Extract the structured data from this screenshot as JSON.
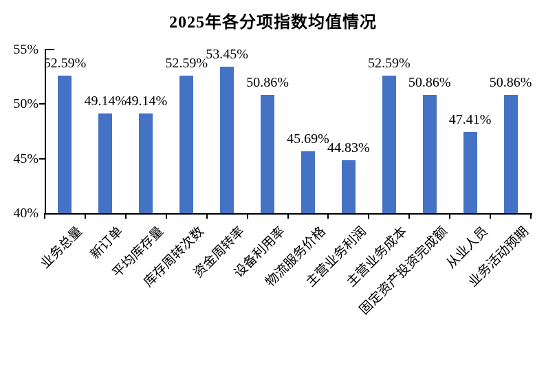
{
  "page": {
    "background": "#FFFFFF"
  },
  "chart_data": {
    "type": "bar",
    "title": "2025年各分项指数均值情况",
    "categories": [
      "业务总量",
      "新订单",
      "平均库存量",
      "库存周转次数",
      "资金周转率",
      "设备利用率",
      "物流服务价格",
      "主营业务利润",
      "主营业务成本",
      "固定资产投资完成额",
      "从业人员",
      "业务活动预期"
    ],
    "values": [
      52.59,
      49.14,
      49.14,
      52.59,
      53.45,
      50.86,
      45.69,
      44.83,
      52.59,
      50.86,
      47.41,
      50.86
    ],
    "data_labels": [
      "52.59%",
      "49.14%",
      "49.14%",
      "52.59%",
      "53.45%",
      "50.86%",
      "45.69%",
      "44.83%",
      "52.59%",
      "50.86%",
      "47.41%",
      "50.86%"
    ],
    "xlabel": "",
    "ylabel": "",
    "ylim": [
      40,
      55
    ],
    "yticks": [
      {
        "value": 55,
        "label": "55%"
      },
      {
        "value": 50,
        "label": "50%"
      },
      {
        "value": 45,
        "label": "45%"
      },
      {
        "value": 40,
        "label": "40%"
      }
    ],
    "grid": false,
    "legend": "none",
    "bar_color": "#4472C4",
    "axis_color": "#000000",
    "text_color": "#000000"
  }
}
